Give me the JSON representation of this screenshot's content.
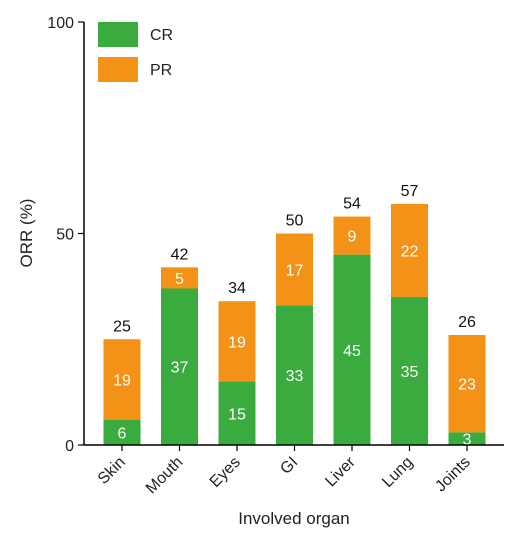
{
  "chart_data": {
    "type": "bar",
    "stacked": true,
    "title": "",
    "xlabel": "Involved organ",
    "ylabel": "ORR (%)",
    "ylim": [
      0,
      100
    ],
    "yticks": [
      0,
      50,
      100
    ],
    "categories": [
      "Skin",
      "Mouth",
      "Eyes",
      "GI",
      "Liver",
      "Lung",
      "Joints"
    ],
    "series": [
      {
        "name": "CR",
        "color": "#3aab3e",
        "values": [
          6,
          37,
          15,
          33,
          45,
          35,
          3
        ]
      },
      {
        "name": "PR",
        "color": "#f39217",
        "values": [
          19,
          5,
          19,
          17,
          9,
          22,
          23
        ]
      }
    ],
    "totals": [
      25,
      42,
      34,
      50,
      54,
      57,
      26
    ],
    "legend_position": "top-left",
    "grid": false
  }
}
